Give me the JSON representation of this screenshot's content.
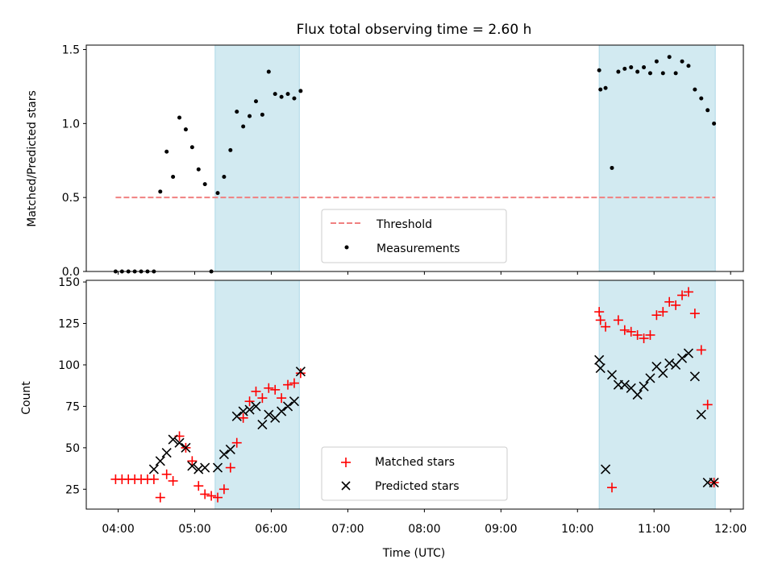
{
  "chart_data": [
    {
      "type": "scatter",
      "title": "Flux total observing time = 2.60 h",
      "ylabel": "Matched/Predicted stars",
      "xlabel": "",
      "xlim": [
        "03:35",
        "12:10"
      ],
      "ylim": [
        0,
        1.53
      ],
      "x_ticks": [
        "04:00",
        "05:00",
        "06:00",
        "07:00",
        "08:00",
        "09:00",
        "10:00",
        "11:00",
        "12:00"
      ],
      "y_ticks": [
        "0.0",
        "0.5",
        "1.0",
        "1.5"
      ],
      "shaded_intervals": [
        [
          "05:16",
          "06:22"
        ],
        [
          "10:17",
          "11:48"
        ]
      ],
      "legend": {
        "position": "lower center",
        "entries": [
          "Threshold",
          "Measurements"
        ]
      },
      "series": [
        {
          "name": "Threshold",
          "kind": "dashed-line",
          "color": "#f08080",
          "x": [
            "03:58",
            "11:48"
          ],
          "y": [
            0.5,
            0.5
          ]
        },
        {
          "name": "Measurements",
          "kind": "dot",
          "color": "#000000",
          "x": [
            "03:58",
            "04:03",
            "04:08",
            "04:13",
            "04:18",
            "04:23",
            "04:28",
            "04:33",
            "04:38",
            "04:43",
            "04:48",
            "04:53",
            "04:58",
            "05:03",
            "05:08",
            "05:13",
            "05:18",
            "05:23",
            "05:28",
            "05:33",
            "05:38",
            "05:43",
            "05:48",
            "05:53",
            "05:58",
            "06:03",
            "06:08",
            "06:13",
            "06:18",
            "06:23",
            "10:17",
            "10:18",
            "10:22",
            "10:27",
            "10:32",
            "10:37",
            "10:42",
            "10:47",
            "10:52",
            "10:57",
            "11:02",
            "11:07",
            "11:12",
            "11:17",
            "11:22",
            "11:27",
            "11:32",
            "11:37",
            "11:42",
            "11:47"
          ],
          "y": [
            0,
            0,
            0,
            0,
            0,
            0,
            0,
            0.54,
            0.81,
            0.64,
            1.04,
            0.96,
            0.84,
            0.69,
            0.59,
            0,
            0.53,
            0.64,
            0.82,
            1.08,
            0.98,
            1.05,
            1.15,
            1.06,
            1.35,
            1.2,
            1.18,
            1.2,
            1.17,
            1.22,
            1.36,
            1.23,
            1.24,
            0.7,
            1.35,
            1.37,
            1.38,
            1.35,
            1.38,
            1.34,
            1.42,
            1.34,
            1.45,
            1.34,
            1.42,
            1.39,
            1.23,
            1.17,
            1.09,
            1.0
          ]
        }
      ]
    },
    {
      "type": "scatter",
      "title": "",
      "ylabel": "Count",
      "xlabel": "Time (UTC)",
      "xlim": [
        "03:35",
        "12:10"
      ],
      "ylim": [
        13,
        151
      ],
      "x_ticks": [
        "04:00",
        "05:00",
        "06:00",
        "07:00",
        "08:00",
        "09:00",
        "10:00",
        "11:00",
        "12:00"
      ],
      "y_ticks": [
        "25",
        "50",
        "75",
        "100",
        "125",
        "150"
      ],
      "shaded_intervals": [
        [
          "05:16",
          "06:22"
        ],
        [
          "10:17",
          "11:48"
        ]
      ],
      "legend": {
        "position": "lower center",
        "entries": [
          "Matched stars",
          "Predicted stars"
        ]
      },
      "series": [
        {
          "name": "Matched stars",
          "marker": "+",
          "color": "#ff0000",
          "x": [
            "03:58",
            "04:03",
            "04:08",
            "04:13",
            "04:18",
            "04:23",
            "04:28",
            "04:33",
            "04:38",
            "04:43",
            "04:48",
            "04:53",
            "04:58",
            "05:03",
            "05:08",
            "05:13",
            "05:18",
            "05:23",
            "05:28",
            "05:33",
            "05:38",
            "05:43",
            "05:48",
            "05:53",
            "05:58",
            "06:03",
            "06:08",
            "06:13",
            "06:18",
            "06:23",
            "10:17",
            "10:18",
            "10:22",
            "10:27",
            "10:32",
            "10:37",
            "10:42",
            "10:47",
            "10:52",
            "10:57",
            "11:02",
            "11:07",
            "11:12",
            "11:17",
            "11:22",
            "11:27",
            "11:32",
            "11:37",
            "11:42",
            "11:47"
          ],
          "y": [
            31,
            31,
            31,
            31,
            31,
            31,
            31,
            20,
            34,
            30,
            57,
            50,
            42,
            27,
            22,
            21,
            20,
            25,
            38,
            53,
            68,
            78,
            84,
            80,
            86,
            85,
            80,
            88,
            89,
            95,
            132,
            127,
            123,
            26,
            127,
            121,
            120,
            118,
            116,
            118,
            130,
            132,
            138,
            136,
            142,
            144,
            131,
            109,
            76,
            29
          ]
        },
        {
          "name": "Predicted stars",
          "marker": "x",
          "color": "#000000",
          "x": [
            "04:28",
            "04:33",
            "04:38",
            "04:43",
            "04:48",
            "04:53",
            "04:58",
            "05:03",
            "05:08",
            "05:18",
            "05:23",
            "05:28",
            "05:33",
            "05:38",
            "05:43",
            "05:48",
            "05:53",
            "05:58",
            "06:03",
            "06:08",
            "06:13",
            "06:18",
            "06:23",
            "10:17",
            "10:18",
            "10:22",
            "10:27",
            "10:32",
            "10:37",
            "10:42",
            "10:47",
            "10:52",
            "10:57",
            "11:02",
            "11:07",
            "11:12",
            "11:17",
            "11:22",
            "11:27",
            "11:32",
            "11:37",
            "11:42",
            "11:47"
          ],
          "y": [
            37,
            42,
            47,
            55,
            53,
            50,
            39,
            37,
            38,
            38,
            46,
            49,
            69,
            72,
            73,
            75,
            64,
            70,
            68,
            72,
            75,
            78,
            96,
            103,
            98,
            37,
            94,
            88,
            88,
            86,
            82,
            87,
            92,
            99,
            95,
            101,
            100,
            104,
            107,
            93,
            70,
            29,
            29
          ]
        }
      ]
    }
  ]
}
